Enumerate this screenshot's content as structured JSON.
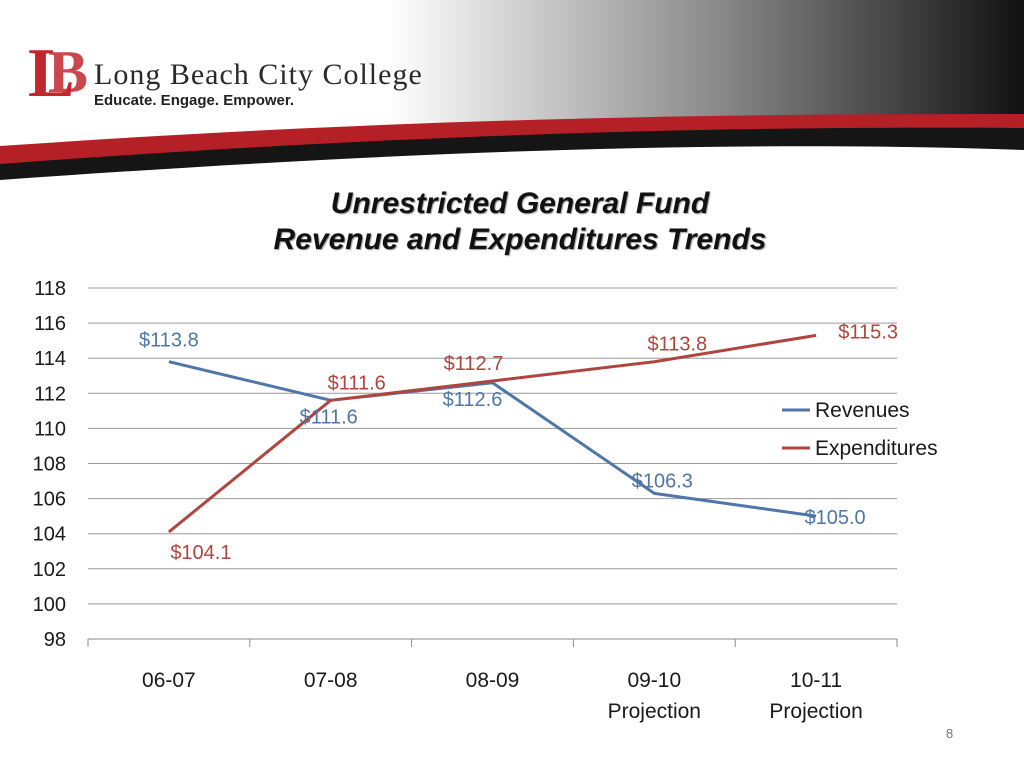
{
  "header": {
    "college_name": "Long Beach City College",
    "tagline": "Educate. Engage. Empower.",
    "logo_letters": "LB",
    "brand_red": "#c0282e",
    "dark": "#1a1a1a"
  },
  "slide": {
    "page_number": "8"
  },
  "chart_data": {
    "type": "line",
    "title_lines": [
      "Unrestricted General Fund",
      "Revenue and Expenditures Trends"
    ],
    "categories": [
      [
        "06-07"
      ],
      [
        "07-08"
      ],
      [
        "08-09"
      ],
      [
        "09-10",
        "Projection"
      ],
      [
        "10-11",
        "Projection"
      ]
    ],
    "ylim": [
      98,
      118
    ],
    "yticks": [
      98,
      100,
      102,
      104,
      106,
      108,
      110,
      112,
      114,
      116,
      118
    ],
    "grid": true,
    "legend_position": "right",
    "series": [
      {
        "name": "Revenues",
        "color": "#4f76a6",
        "values": [
          113.8,
          111.6,
          112.6,
          106.3,
          105.0
        ],
        "labels": [
          "$113.8",
          "$111.6",
          "$112.6",
          "$106.3",
          "$105.0"
        ]
      },
      {
        "name": "Expenditures",
        "color": "#b0453f",
        "values": [
          104.1,
          111.6,
          112.7,
          113.8,
          115.3
        ],
        "labels": [
          "$104.1",
          "$111.6",
          "$112.7",
          "$113.8",
          "$115.3"
        ]
      }
    ]
  }
}
